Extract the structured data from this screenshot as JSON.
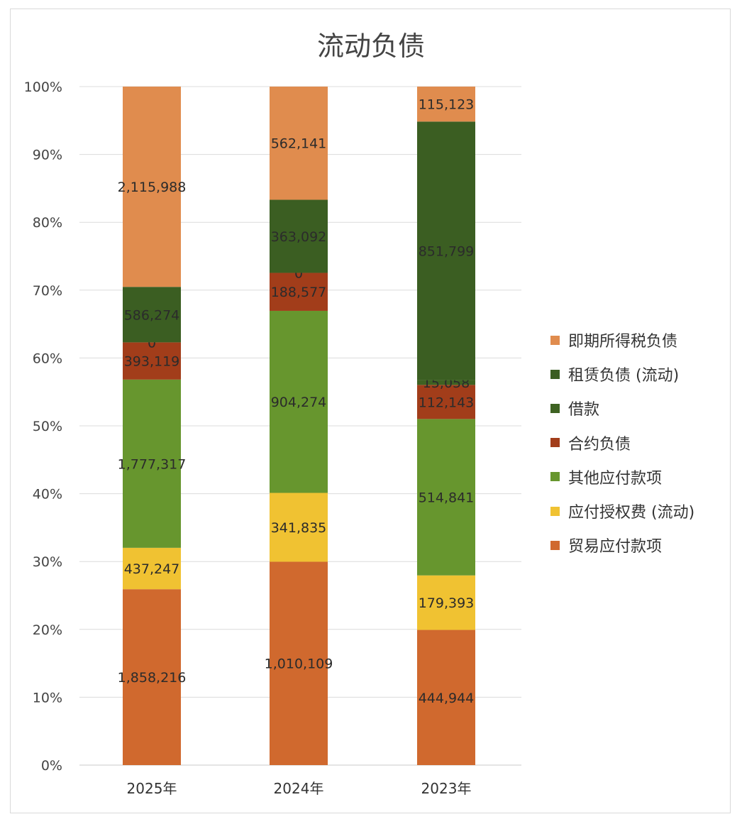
{
  "chart_data": {
    "type": "bar",
    "stacked": "percent",
    "title": "流动负债",
    "xlabel": "",
    "ylabel": "",
    "ylim": [
      0,
      100
    ],
    "y_ticks": [
      "0%",
      "10%",
      "20%",
      "30%",
      "40%",
      "50%",
      "60%",
      "70%",
      "80%",
      "90%",
      "100%"
    ],
    "grid": true,
    "legend_position": "right",
    "categories": [
      "2025年",
      "2024年",
      "2023年"
    ],
    "series": [
      {
        "name": "贸易应付款项",
        "color": "#D0692E",
        "values": [
          1858216,
          1010109,
          444944
        ],
        "labels": [
          "1,858,216",
          "1,010,109",
          "444,944"
        ]
      },
      {
        "name": "应付授权费 (流动)",
        "color": "#F0C232",
        "values": [
          437247,
          341835,
          179393
        ],
        "labels": [
          "437,247",
          "341,835",
          "179,393"
        ]
      },
      {
        "name": "其他应付款项",
        "color": "#67962E",
        "values": [
          1777317,
          904274,
          514841
        ],
        "labels": [
          "1,777,317",
          "904,274",
          "514,841"
        ]
      },
      {
        "name": "合约负债",
        "color": "#A23D1A",
        "values": [
          393119,
          188577,
          112143
        ],
        "labels": [
          "393,119",
          "188,577",
          "112,143"
        ]
      },
      {
        "name": "借款",
        "color": "#3E6222",
        "values": [
          0,
          0,
          15058
        ],
        "labels": [
          "0",
          "0",
          "15,058"
        ]
      },
      {
        "name": "租赁负债 (流动)",
        "color": "#3B5E22",
        "values": [
          586274,
          363092,
          851799
        ],
        "labels": [
          "586,274",
          "363,092",
          "851,799"
        ]
      },
      {
        "name": "即期所得税负债",
        "color": "#E08C4E",
        "values": [
          2115988,
          562141,
          115123
        ],
        "labels": [
          "2,115,988",
          "562,141",
          "115,123"
        ]
      }
    ],
    "legend_order": [
      "即期所得税负债",
      "租赁负债 (流动)",
      "借款",
      "合约负债",
      "其他应付款项",
      "应付授权费 (流动)",
      "贸易应付款项"
    ]
  }
}
